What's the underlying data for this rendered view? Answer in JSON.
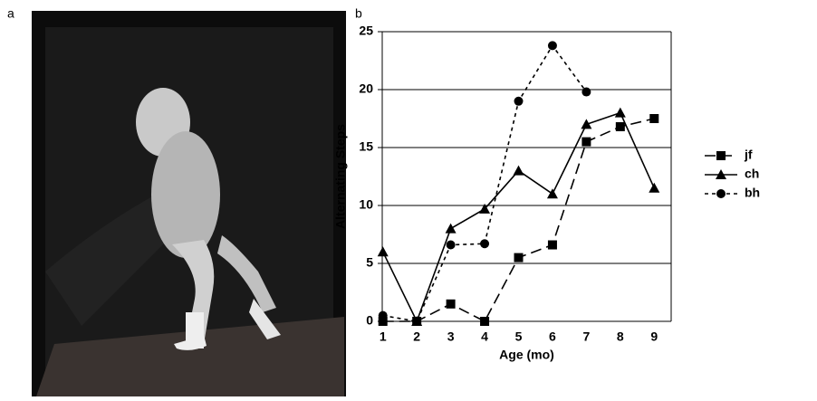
{
  "panel_labels": [
    "a",
    "b"
  ],
  "chart_data": {
    "type": "line",
    "title": null,
    "x_label": "Age (mo)",
    "y_label": "Alternating Steps",
    "categories": [
      "1",
      "2",
      "3",
      "4",
      "5",
      "6",
      "7",
      "8",
      "9"
    ],
    "ylim": [
      0,
      25
    ],
    "yticks": [
      0,
      5,
      10,
      15,
      20,
      25
    ],
    "grid": true,
    "legend": "right",
    "series": [
      {
        "name": "jf",
        "color": "#000000",
        "marker": "square",
        "dash": "long",
        "values": [
          0,
          0,
          1.5,
          0,
          5.5,
          6.6,
          15.5,
          16.8,
          17.5
        ]
      },
      {
        "name": "ch",
        "color": "#000000",
        "marker": "triangle",
        "dash": "solid",
        "values": [
          6,
          0,
          8,
          9.7,
          13,
          11,
          17,
          18,
          11.5
        ]
      },
      {
        "name": "bh",
        "color": "#000000",
        "marker": "circle",
        "dash": "short",
        "values": [
          0.5,
          0,
          6.6,
          6.7,
          19,
          23.8,
          19.8,
          null,
          null
        ]
      }
    ]
  }
}
